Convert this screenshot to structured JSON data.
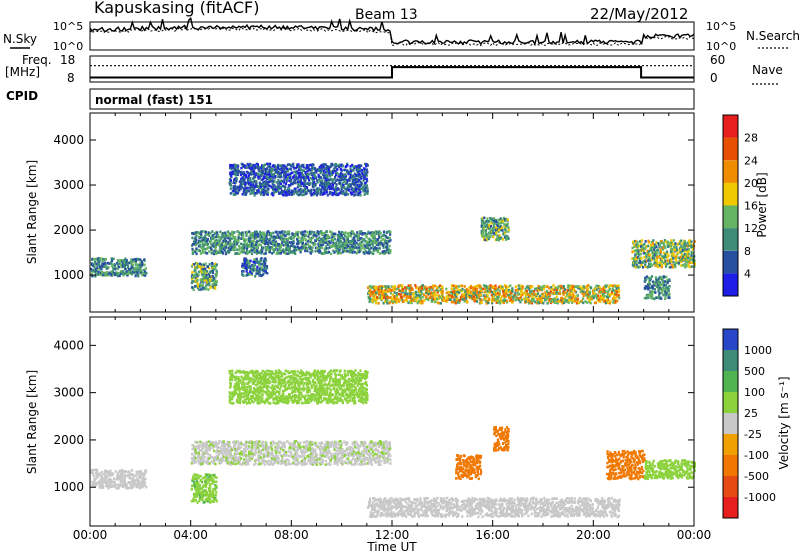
{
  "header": {
    "station": "Kapuskasing (fitACF)",
    "beam": "Beam 13",
    "date": "22/May/2012"
  },
  "top_panels": {
    "nsky_label": "N.Sky",
    "nsearch_label": "N.Search",
    "freq_label_1": "Freq.",
    "freq_label_2": "[MHz]",
    "nave_label": "Nave",
    "cpid_label": "CPID",
    "cpid_value": "normal (fast) 151",
    "noise_ticks_left": [
      "10^5",
      "10^0"
    ],
    "noise_ticks_right": [
      "10^5",
      "10^0"
    ],
    "freq_ticks": [
      "18",
      "8"
    ],
    "nave_ticks": [
      "60",
      "0"
    ]
  },
  "x_axis": {
    "label": "Time UT",
    "ticks": [
      "00:00",
      "04:00",
      "08:00",
      "12:00",
      "16:00",
      "20:00",
      "00:00"
    ]
  },
  "power_colorbar": {
    "label": "Power [dB]",
    "ticks": [
      "4",
      "8",
      "12",
      "16",
      "20",
      "24",
      "28"
    ],
    "colors": [
      "#1e1ee6",
      "#2850a0",
      "#3c8c78",
      "#64b464",
      "#f0c800",
      "#f08c00",
      "#e65000",
      "#e61e1e"
    ]
  },
  "velocity_colorbar": {
    "label": "Velocity [m s⁻¹]",
    "ticks": [
      "1000",
      "500",
      "100",
      "25",
      "-25",
      "-100",
      "-500",
      "-1000"
    ],
    "colors": [
      "#2846c8",
      "#3c8c78",
      "#50b450",
      "#8cd23c",
      "#c8c8c8",
      "#f0a000",
      "#f07800",
      "#e64b14",
      "#e61e1e"
    ]
  },
  "chart_data": [
    {
      "type": "heatmap",
      "title": "Power",
      "xlabel": "Time UT",
      "ylabel": "Slant Range [km]",
      "xlim": [
        0,
        24
      ],
      "ylim": [
        180,
        4600
      ],
      "yticks": [
        1000,
        2000,
        3000,
        4000
      ],
      "colorbar_range": [
        0,
        32
      ],
      "colorbar_unit": "dB",
      "echo_regions": [
        {
          "t": [
            0.0,
            2.2
          ],
          "range": [
            1000,
            1400
          ],
          "value": 10
        },
        {
          "t": [
            4.0,
            11.9
          ],
          "range": [
            1500,
            2000
          ],
          "value": 10
        },
        {
          "t": [
            5.5,
            11.0
          ],
          "range": [
            2800,
            3500
          ],
          "value": 6
        },
        {
          "t": [
            4.0,
            5.0
          ],
          "range": [
            700,
            1300
          ],
          "value": 12
        },
        {
          "t": [
            6.0,
            7.0
          ],
          "range": [
            1000,
            1400
          ],
          "value": 8
        },
        {
          "t": [
            11.0,
            21.0
          ],
          "range": [
            400,
            800
          ],
          "value": 18
        },
        {
          "t": [
            15.5,
            16.6
          ],
          "range": [
            1800,
            2300
          ],
          "value": 12
        },
        {
          "t": [
            21.5,
            24.0
          ],
          "range": [
            1200,
            1800
          ],
          "value": 14
        },
        {
          "t": [
            22.0,
            23.0
          ],
          "range": [
            500,
            1000
          ],
          "value": 10
        }
      ]
    },
    {
      "type": "heatmap",
      "title": "Velocity",
      "xlabel": "Time UT",
      "ylabel": "Slant Range [km]",
      "xlim": [
        0,
        24
      ],
      "ylim": [
        180,
        4600
      ],
      "yticks": [
        1000,
        2000,
        3000,
        4000
      ],
      "colorbar_range": [
        -1000,
        1000
      ],
      "colorbar_unit": "m s-1",
      "echo_regions": [
        {
          "t": [
            0.0,
            2.2
          ],
          "range": [
            1000,
            1400
          ],
          "value": 0
        },
        {
          "t": [
            4.0,
            11.9
          ],
          "range": [
            1500,
            2000
          ],
          "value": 20
        },
        {
          "t": [
            5.5,
            11.0
          ],
          "range": [
            2800,
            3500
          ],
          "value": 40
        },
        {
          "t": [
            4.0,
            5.0
          ],
          "range": [
            700,
            1300
          ],
          "value": 80
        },
        {
          "t": [
            11.0,
            21.0
          ],
          "range": [
            400,
            800
          ],
          "value": 0
        },
        {
          "t": [
            16.0,
            16.6
          ],
          "range": [
            1800,
            2300
          ],
          "value": -300
        },
        {
          "t": [
            14.5,
            15.5
          ],
          "range": [
            1200,
            1700
          ],
          "value": -150
        },
        {
          "t": [
            20.5,
            22.0
          ],
          "range": [
            1200,
            1800
          ],
          "value": -200
        },
        {
          "t": [
            22.0,
            24.0
          ],
          "range": [
            1200,
            1600
          ],
          "value": 60
        }
      ]
    }
  ],
  "frequency_series": [
    {
      "t": [
        0,
        12
      ],
      "value": 10.5
    },
    {
      "t": [
        12,
        21.9
      ],
      "value": 14.5
    },
    {
      "t": [
        21.9,
        24
      ],
      "value": 10.5
    }
  ],
  "nave_series": [
    {
      "t": [
        0,
        24
      ],
      "value": 10
    }
  ]
}
